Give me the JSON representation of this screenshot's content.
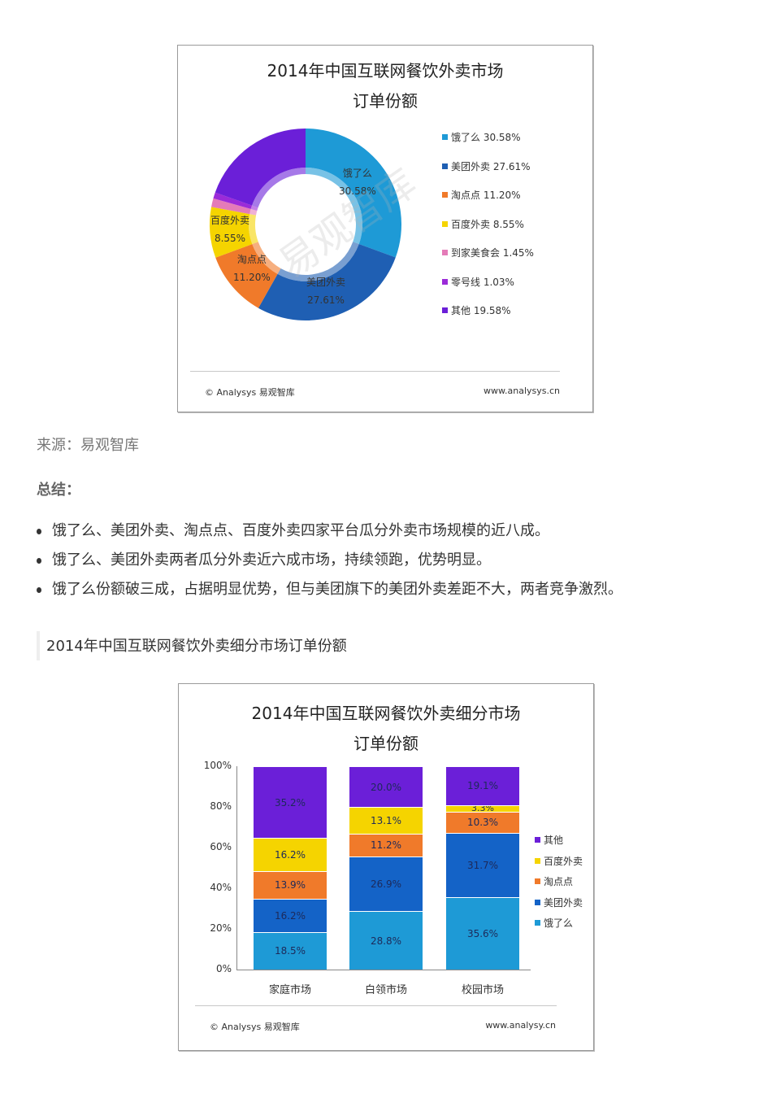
{
  "figure1": {
    "title_line1": "2014年中国互联网餐饮外卖市场",
    "title_line2": "订单份额",
    "footer_left": "© Analysys 易观智库",
    "footer_right": "www.analysys.cn",
    "watermark": "易观智库",
    "legend": [
      {
        "label": "饿了么  30.58%",
        "color": "#1e9ad6"
      },
      {
        "label": "美团外卖  27.61%",
        "color": "#1f5fb3"
      },
      {
        "label": "淘点点  11.20%",
        "color": "#f07a2a"
      },
      {
        "label": "百度外卖  8.55%",
        "color": "#f5d400"
      },
      {
        "label": "到家美食会  1.45%",
        "color": "#e47bb8"
      },
      {
        "label": "零号线  1.03%",
        "color": "#9b2bd8"
      },
      {
        "label": "其他  19.58%",
        "color": "#6b1fd8"
      }
    ],
    "slice_labels": [
      {
        "name": "饿了么",
        "value": "30.58%"
      },
      {
        "name": "美团外卖",
        "value": "27.61%"
      },
      {
        "name": "淘点点",
        "value": "11.20%"
      },
      {
        "name": "百度外卖",
        "value": "8.55%"
      }
    ]
  },
  "text": {
    "source": "来源：易观智库",
    "summary_heading": "总结：",
    "bullets": [
      "饿了么、美团外卖、淘点点、百度外卖四家平台瓜分外卖市场规模的近八成。",
      "饿了么、美团外卖两者瓜分外卖近六成市场，持续领跑，优势明显。",
      "饿了么份额破三成，占据明显优势，但与美团旗下的美团外卖差距不大，两者竞争激烈。"
    ],
    "section_heading": "2014年中国互联网餐饮外卖细分市场订单份额"
  },
  "figure2": {
    "title_line1": "2014年中国互联网餐饮外卖细分市场",
    "title_line2": "订单份额",
    "footer_left": "© Analysys 易观智库",
    "footer_right": "www.analysy.cn",
    "y_ticks": [
      "100%",
      "80%",
      "60%",
      "40%",
      "20%",
      "0%"
    ],
    "categories": [
      "家庭市场",
      "白领市场",
      "校园市场"
    ],
    "legend": [
      {
        "label": "其他",
        "color": "#6b1fd8"
      },
      {
        "label": "百度外卖",
        "color": "#f5d400"
      },
      {
        "label": "淘点点",
        "color": "#f07a2a"
      },
      {
        "label": "美团外卖",
        "color": "#1463c7"
      },
      {
        "label": "饿了么",
        "color": "#1e9ad6"
      }
    ],
    "bars": [
      {
        "segments": [
          {
            "label": "18.5%",
            "value": 18.5,
            "color": "#1e9ad6"
          },
          {
            "label": "16.2%",
            "value": 16.2,
            "color": "#1463c7"
          },
          {
            "label": "13.9%",
            "value": 13.9,
            "color": "#f07a2a"
          },
          {
            "label": "16.2%",
            "value": 16.2,
            "color": "#f5d400"
          },
          {
            "label": "35.2%",
            "value": 35.2,
            "color": "#6b1fd8"
          }
        ]
      },
      {
        "segments": [
          {
            "label": "28.8%",
            "value": 28.8,
            "color": "#1e9ad6"
          },
          {
            "label": "26.9%",
            "value": 26.9,
            "color": "#1463c7"
          },
          {
            "label": "11.2%",
            "value": 11.2,
            "color": "#f07a2a"
          },
          {
            "label": "13.1%",
            "value": 13.1,
            "color": "#f5d400"
          },
          {
            "label": "20.0%",
            "value": 20.0,
            "color": "#6b1fd8"
          }
        ]
      },
      {
        "segments": [
          {
            "label": "35.6%",
            "value": 35.6,
            "color": "#1e9ad6"
          },
          {
            "label": "31.7%",
            "value": 31.7,
            "color": "#1463c7"
          },
          {
            "label": "10.3%",
            "value": 10.3,
            "color": "#f07a2a"
          },
          {
            "label": "3.3%",
            "value": 3.3,
            "color": "#f5d400"
          },
          {
            "label": "19.1%",
            "value": 19.1,
            "color": "#6b1fd8"
          }
        ]
      }
    ]
  },
  "chart_data": [
    {
      "type": "pie",
      "title": "2014年中国互联网餐饮外卖市场订单份额",
      "categories": [
        "饿了么",
        "美团外卖",
        "淘点点",
        "百度外卖",
        "到家美食会",
        "零号线",
        "其他"
      ],
      "values": [
        30.58,
        27.61,
        11.2,
        8.55,
        1.45,
        1.03,
        19.58
      ],
      "unit": "%",
      "legend_position": "right"
    },
    {
      "type": "bar",
      "stacked": true,
      "title": "2014年中国互联网餐饮外卖细分市场订单份额",
      "categories": [
        "家庭市场",
        "白领市场",
        "校园市场"
      ],
      "series": [
        {
          "name": "饿了么",
          "values": [
            18.5,
            28.8,
            35.6
          ]
        },
        {
          "name": "美团外卖",
          "values": [
            16.2,
            26.9,
            31.7
          ]
        },
        {
          "name": "淘点点",
          "values": [
            13.9,
            11.2,
            10.3
          ]
        },
        {
          "name": "百度外卖",
          "values": [
            16.2,
            13.1,
            3.3
          ]
        },
        {
          "name": "其他",
          "values": [
            35.2,
            20.0,
            19.1
          ]
        }
      ],
      "ylim": [
        0,
        100
      ],
      "y_ticks": [
        "0%",
        "20%",
        "40%",
        "60%",
        "80%",
        "100%"
      ],
      "legend_position": "right"
    }
  ]
}
